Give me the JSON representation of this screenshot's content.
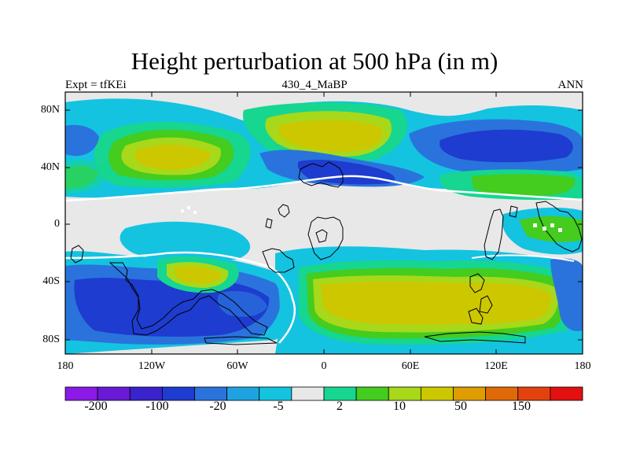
{
  "title": "Height perturbation at 500 hPa (in m)",
  "subtitle_left": "Expt = tfKEi",
  "subtitle_center": "430_4_MaBP",
  "subtitle_right": "ANN",
  "lat_ticks": [
    "80N",
    "40N",
    "0",
    "40S",
    "80S"
  ],
  "lon_ticks": [
    "180",
    "120W",
    "60W",
    "0",
    "60E",
    "120E",
    "180"
  ],
  "colorbar": {
    "colors": [
      "#8b1ae6",
      "#6a1ad6",
      "#3a22cc",
      "#1e3ccf",
      "#2a73dc",
      "#1fa3e0",
      "#14c3e0",
      "#e8e8e8",
      "#16d690",
      "#44cc1e",
      "#a8d81a",
      "#cdc700",
      "#df9d00",
      "#e06a08",
      "#e3420e",
      "#e21010"
    ],
    "labels": [
      "-200",
      "-100",
      "-20",
      "-5",
      "2",
      "10",
      "50",
      "150"
    ]
  },
  "palette": {
    "deep_blue": "#1e3ccf",
    "blue": "#2a73dc",
    "cyan": "#14c3e0",
    "light_blue": "#1fa3e0",
    "grey": "#e8e8e8",
    "teal": "#16d690",
    "green": "#44cc1e",
    "yellow_green": "#a8d81a",
    "olive": "#cdc700"
  }
}
